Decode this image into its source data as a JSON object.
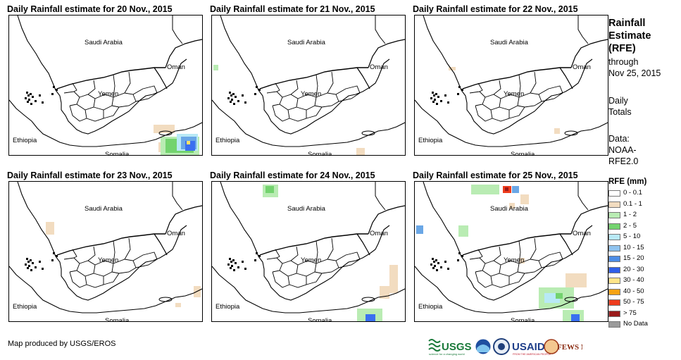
{
  "panels": [
    {
      "title": "Daily Rainfall estimate for 20 Nov., 2015",
      "rain": [
        {
          "c": "#f2dcc0",
          "x": 205,
          "y": 155,
          "w": 30,
          "h": 12
        },
        {
          "c": "#f2dcc0",
          "x": 212,
          "y": 180,
          "w": 22,
          "h": 14
        },
        {
          "c": "#b9ecb3",
          "x": 215,
          "y": 172,
          "w": 55,
          "h": 26
        },
        {
          "c": "#73d36e",
          "x": 222,
          "y": 175,
          "w": 40,
          "h": 20
        },
        {
          "c": "#b8e9f6",
          "x": 238,
          "y": 168,
          "w": 30,
          "h": 24
        },
        {
          "c": "#6aa7e6",
          "x": 244,
          "y": 172,
          "w": 22,
          "h": 18
        },
        {
          "c": "#3a6ff0",
          "x": 250,
          "y": 178,
          "w": 14,
          "h": 14
        },
        {
          "c": "#ffe066",
          "x": 252,
          "y": 178,
          "w": 5,
          "h": 5
        }
      ]
    },
    {
      "title": "Daily Rainfall estimate for 21 Nov., 2015",
      "rain": [
        {
          "c": "#b9ecb3",
          "x": 2,
          "y": 70,
          "w": 7,
          "h": 8
        },
        {
          "c": "#f2dcc0",
          "x": 205,
          "y": 188,
          "w": 12,
          "h": 12
        }
      ]
    },
    {
      "title": "Daily Rainfall estimate for 22 Nov., 2015",
      "rain": [
        {
          "c": "#f2dcc0",
          "x": 48,
          "y": 73,
          "w": 10,
          "h": 5
        },
        {
          "c": "#f2dcc0",
          "x": 198,
          "y": 160,
          "w": 8,
          "h": 8
        }
      ]
    },
    {
      "title": "Daily Rainfall estimate for 23 Nov., 2015",
      "rain": [
        {
          "c": "#f2dcc0",
          "x": 52,
          "y": 57,
          "w": 12,
          "h": 18
        },
        {
          "c": "#f2dcc0",
          "x": 262,
          "y": 148,
          "w": 10,
          "h": 16
        },
        {
          "c": "#f2dcc0",
          "x": 236,
          "y": 172,
          "w": 8,
          "h": 6
        }
      ]
    },
    {
      "title": "Daily Rainfall estimate for 24 Nov., 2015",
      "rain": [
        {
          "c": "#b9ecb3",
          "x": 72,
          "y": 4,
          "w": 22,
          "h": 18
        },
        {
          "c": "#73d36e",
          "x": 76,
          "y": 6,
          "w": 12,
          "h": 10
        },
        {
          "c": "#f2dcc0",
          "x": 252,
          "y": 118,
          "w": 12,
          "h": 40
        },
        {
          "c": "#f2dcc0",
          "x": 238,
          "y": 148,
          "w": 14,
          "h": 18
        },
        {
          "c": "#b9ecb3",
          "x": 206,
          "y": 180,
          "w": 36,
          "h": 22
        },
        {
          "c": "#3a6ff0",
          "x": 218,
          "y": 188,
          "w": 14,
          "h": 12
        }
      ]
    },
    {
      "title": "Daily Rainfall estimate for 25 Nov., 2015",
      "rain": [
        {
          "c": "#b9ecb3",
          "x": 80,
          "y": 4,
          "w": 40,
          "h": 14
        },
        {
          "c": "#ee3b1c",
          "x": 125,
          "y": 6,
          "w": 12,
          "h": 10
        },
        {
          "c": "#9a1a1a",
          "x": 128,
          "y": 8,
          "w": 5,
          "h": 5
        },
        {
          "c": "#6aa7e6",
          "x": 138,
          "y": 6,
          "w": 10,
          "h": 10
        },
        {
          "c": "#f2dcc0",
          "x": 150,
          "y": 18,
          "w": 12,
          "h": 14
        },
        {
          "c": "#6aa7e6",
          "x": 2,
          "y": 62,
          "w": 10,
          "h": 12
        },
        {
          "c": "#b9ecb3",
          "x": 62,
          "y": 62,
          "w": 14,
          "h": 16
        },
        {
          "c": "#f2dcc0",
          "x": 148,
          "y": 108,
          "w": 8,
          "h": 8
        },
        {
          "c": "#f2dcc0",
          "x": 214,
          "y": 130,
          "w": 30,
          "h": 20
        },
        {
          "c": "#b9ecb3",
          "x": 176,
          "y": 150,
          "w": 50,
          "h": 30
        },
        {
          "c": "#b8e9f6",
          "x": 184,
          "y": 158,
          "w": 22,
          "h": 14
        },
        {
          "c": "#73d36e",
          "x": 200,
          "y": 158,
          "w": 10,
          "h": 8
        },
        {
          "c": "#b9ecb3",
          "x": 210,
          "y": 182,
          "w": 30,
          "h": 18
        },
        {
          "c": "#3a6ff0",
          "x": 222,
          "y": 188,
          "w": 12,
          "h": 10
        },
        {
          "c": "#f2dcc0",
          "x": 134,
          "y": 30,
          "w": 8,
          "h": 8
        }
      ]
    }
  ],
  "countries": {
    "saudi": "Saudi Arabia",
    "oman": "Oman",
    "yemen": "Yemen",
    "ethiopia": "Ethiopia",
    "somalia": "Somalia"
  },
  "side": {
    "title": [
      "Rainfall",
      "Estimate",
      "(RFE)"
    ],
    "through": "through",
    "date": "Nov 25, 2015",
    "daily": [
      "Daily",
      "Totals"
    ],
    "data": [
      "Data:",
      "NOAA-",
      "RFE2.0"
    ]
  },
  "legend": {
    "title": "RFE (mm)",
    "items": [
      {
        "label": "0 - 0.1",
        "color": "#ffffff"
      },
      {
        "label": "0.1 - 1",
        "color": "#f2dcc0"
      },
      {
        "label": "1 - 2",
        "color": "#b9ecb3"
      },
      {
        "label": "2 - 5",
        "color": "#73d36e"
      },
      {
        "label": "5 - 10",
        "color": "#b8e9f6"
      },
      {
        "label": "10 - 15",
        "color": "#8fc3ef"
      },
      {
        "label": "15 - 20",
        "color": "#4d8de6"
      },
      {
        "label": "20 - 30",
        "color": "#2f5fe8"
      },
      {
        "label": "30 - 40",
        "color": "#ffe58a"
      },
      {
        "label": "40 - 50",
        "color": "#f6a315"
      },
      {
        "label": "50 - 75",
        "color": "#ee3b1c"
      },
      {
        "label": "> 75",
        "color": "#9a1a1a"
      },
      {
        "label": "No Data",
        "color": "#9a9a9a"
      }
    ]
  },
  "credit": "Map produced by USGS/EROS",
  "logos": {
    "usgs": "USGS",
    "usgs_tag": "science for a changing world",
    "usaid": "USAID",
    "usaid_tag": "FROM THE AMERICAN PEOPLE",
    "fews": "FEWS NET"
  }
}
